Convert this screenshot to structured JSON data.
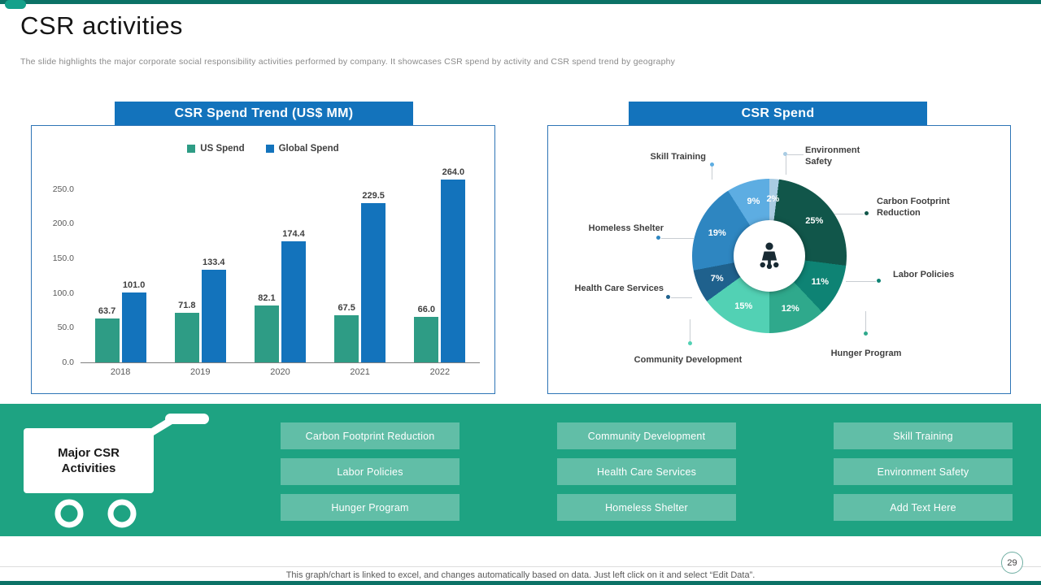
{
  "slide": {
    "title": "CSR activities",
    "subtitle": "The slide highlights the major corporate social responsibility activities performed by company. It showcases CSR spend by activity and CSR spend trend by geography",
    "footer_note": "This graph/chart is linked to excel, and changes automatically based on data. Just left click on it and select “Edit Data”.",
    "page_number": "29"
  },
  "colors": {
    "accent_teal": "#0B7266",
    "banner_blue": "#1373BC",
    "band_green": "#1EA382",
    "us_spend": "#2E9C85",
    "global_spend": "#1373BC"
  },
  "icons": {
    "donut_center": "meeting-icon",
    "band_left": "shopping-cart-icon"
  },
  "chart_data": [
    {
      "type": "bar",
      "title": "CSR Spend Trend (US$ MM)",
      "categories": [
        "2018",
        "2019",
        "2020",
        "2021",
        "2022"
      ],
      "series": [
        {
          "name": "US Spend",
          "color": "#2E9C85",
          "values": [
            63.7,
            71.8,
            82.1,
            67.5,
            66.0
          ]
        },
        {
          "name": "Global Spend",
          "color": "#1373BC",
          "values": [
            101.0,
            133.4,
            174.4,
            229.5,
            264.0
          ]
        }
      ],
      "ylim": [
        0,
        265
      ],
      "yticks": [
        "0.0",
        "50.0",
        "100.0",
        "150.0",
        "200.0",
        "250.0"
      ],
      "legend_position": "top",
      "grid": false
    },
    {
      "type": "pie",
      "donut": true,
      "title": "CSR Spend",
      "slices": [
        {
          "label": "Environment Safety",
          "value": 2,
          "color": "#A9CCE3"
        },
        {
          "label": "Carbon Footprint Reduction",
          "value": 25,
          "color": "#11564A"
        },
        {
          "label": "Labor Policies",
          "value": 11,
          "color": "#0E8374"
        },
        {
          "label": "Hunger Program",
          "value": 12,
          "color": "#2FA98C"
        },
        {
          "label": "Community Development",
          "value": 15,
          "color": "#52D1B4"
        },
        {
          "label": "Health Care Services",
          "value": 7,
          "color": "#1F618D"
        },
        {
          "label": "Homeless Shelter",
          "value": 19,
          "color": "#2E86C1"
        },
        {
          "label": "Skill Training",
          "value": 9,
          "color": "#5DADE2"
        }
      ]
    }
  ],
  "bottom": {
    "cart_label": "Major CSR Activities",
    "columns": [
      {
        "items": [
          "Carbon Footprint Reduction",
          "Labor Policies",
          "Hunger Program"
        ]
      },
      {
        "items": [
          "Community Development",
          "Health Care Services",
          "Homeless Shelter"
        ]
      },
      {
        "items": [
          "Skill Training",
          "Environment Safety",
          "Add Text Here"
        ]
      }
    ]
  }
}
